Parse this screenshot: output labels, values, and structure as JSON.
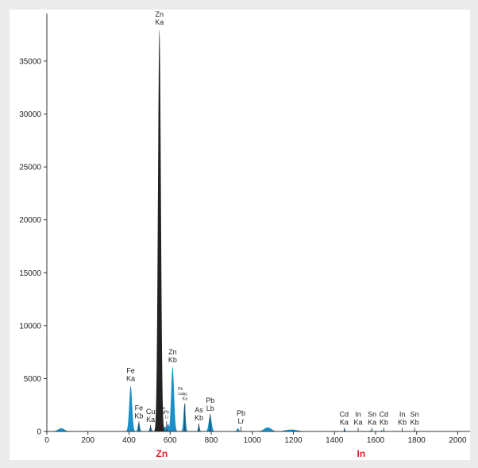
{
  "chart_data": {
    "type": "area",
    "title": "",
    "xlabel": "",
    "ylabel": "",
    "xlim": [
      0,
      2060
    ],
    "ylim": [
      0,
      39500
    ],
    "x_ticks": [
      0,
      200,
      400,
      600,
      800,
      1000,
      1200,
      1400,
      1600,
      1800,
      2000
    ],
    "y_ticks": [
      0,
      5000,
      10000,
      15000,
      20000,
      25000,
      30000,
      35000
    ],
    "grid": false,
    "series": [
      {
        "color": "#1a8fc9",
        "peaks": [
          {
            "x": 70,
            "height": 300,
            "width": 16
          },
          {
            "x": 408,
            "height": 4300,
            "width": 7
          },
          {
            "x": 448,
            "height": 800,
            "width": 5
          },
          {
            "x": 505,
            "height": 450,
            "width": 5
          },
          {
            "x": 548,
            "height": 1100,
            "width": 5
          },
          {
            "x": 560,
            "height": 700,
            "width": 6
          },
          {
            "x": 575,
            "height": 500,
            "width": 5
          },
          {
            "x": 590,
            "height": 700,
            "width": 6
          },
          {
            "x": 612,
            "height": 6100,
            "width": 7
          },
          {
            "x": 670,
            "height": 2500,
            "width": 5
          },
          {
            "x": 740,
            "height": 600,
            "width": 4
          },
          {
            "x": 795,
            "height": 1500,
            "width": 7
          },
          {
            "x": 930,
            "height": 300,
            "width": 5
          },
          {
            "x": 1075,
            "height": 380,
            "width": 18
          },
          {
            "x": 1190,
            "height": 180,
            "width": 30
          },
          {
            "x": 1450,
            "height": 200,
            "width": 3
          },
          {
            "x": 1575,
            "height": 120,
            "width": 3
          },
          {
            "x": 1630,
            "height": 130,
            "width": 3
          }
        ]
      },
      {
        "color": "#222222",
        "peaks": [
          {
            "x": 548,
            "height": 38000,
            "width": 7
          }
        ]
      }
    ],
    "peak_labels": [
      {
        "x": 408,
        "top": 4300,
        "lines": [
          "Fe",
          "Ka"
        ],
        "size": "normal"
      },
      {
        "x": 448,
        "top": 800,
        "lines": [
          "Fe",
          "Kb"
        ],
        "size": "normal"
      },
      {
        "x": 505,
        "top": 450,
        "lines": [
          "Cu",
          "Ka"
        ],
        "size": "normal"
      },
      {
        "x": 548,
        "top": 38000,
        "lines": [
          "Zn",
          "Ka"
        ],
        "size": "normal"
      },
      {
        "x": 563,
        "top": 1200,
        "lines": [
          "Cu",
          "Kb"
        ],
        "size": "small"
      },
      {
        "x": 583,
        "top": 800,
        "lines": [
          "Pb",
          "Ll"
        ],
        "size": "small"
      },
      {
        "x": 612,
        "top": 6100,
        "lines": [
          "Zn",
          "Kb"
        ],
        "size": "normal"
      },
      {
        "x": 650,
        "top": 3000,
        "lines": [
          "Pb",
          "La"
        ],
        "size": "small"
      },
      {
        "x": 672,
        "top": 2500,
        "lines": [
          "As",
          "Ka"
        ],
        "size": "small"
      },
      {
        "x": 740,
        "top": 600,
        "lines": [
          "As",
          "Kb"
        ],
        "size": "normal"
      },
      {
        "x": 795,
        "top": 1500,
        "lines": [
          "Pb",
          "Lb"
        ],
        "size": "normal"
      },
      {
        "x": 945,
        "top": 300,
        "lines": [
          "Pb",
          "Lr"
        ],
        "size": "normal"
      },
      {
        "x": 1447,
        "top": 200,
        "lines": [
          "Cd",
          "Ka"
        ],
        "size": "normal"
      },
      {
        "x": 1515,
        "top": 200,
        "lines": [
          "In",
          "Ka"
        ],
        "size": "normal"
      },
      {
        "x": 1583,
        "top": 200,
        "lines": [
          "Sn",
          "Ka"
        ],
        "size": "normal"
      },
      {
        "x": 1640,
        "top": 200,
        "lines": [
          "Cd",
          "Kb"
        ],
        "size": "normal"
      },
      {
        "x": 1730,
        "top": 200,
        "lines": [
          "In",
          "Kb"
        ],
        "size": "normal"
      },
      {
        "x": 1790,
        "top": 200,
        "lines": [
          "Sn",
          "Kb"
        ],
        "size": "normal"
      }
    ],
    "element_labels": [
      {
        "x": 560,
        "text": "Zn",
        "color": "#e0202a"
      },
      {
        "x": 1530,
        "text": "In",
        "color": "#e0202a"
      }
    ]
  }
}
